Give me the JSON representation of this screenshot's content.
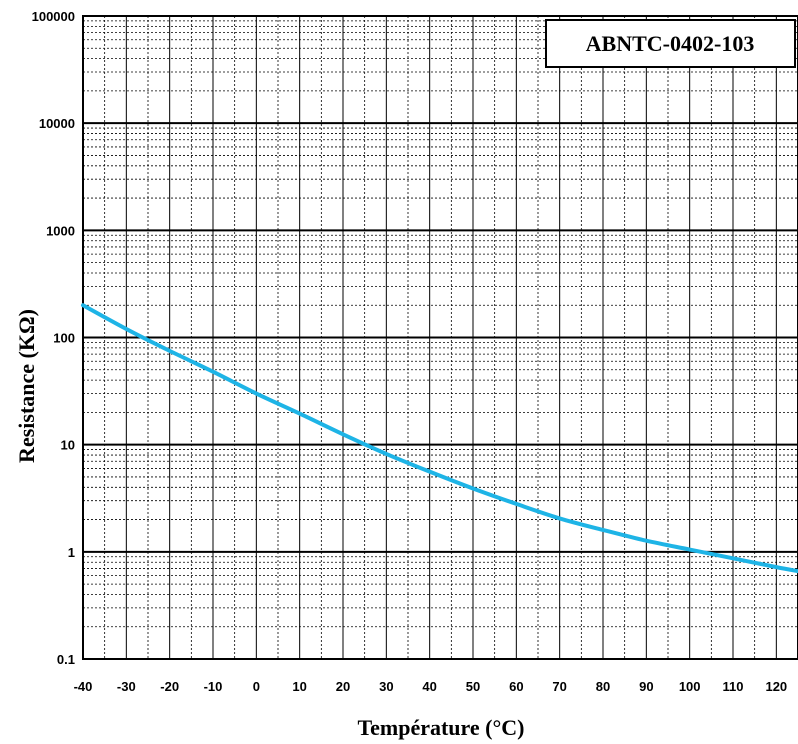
{
  "chart_data": {
    "type": "line",
    "xlabel": "Température (°C)",
    "ylabel": "Resistance (KΩ)",
    "yscale": "log",
    "xlim": [
      -40,
      125
    ],
    "ylim": [
      0.1,
      100000
    ],
    "x_ticks": [
      -40,
      -30,
      -20,
      -10,
      0,
      10,
      20,
      30,
      40,
      50,
      60,
      70,
      80,
      90,
      100,
      110,
      120
    ],
    "y_ticks": [
      0.1,
      1,
      10,
      100,
      1000,
      10000,
      100000
    ],
    "y_tick_labels": [
      "0.1",
      "1",
      "10",
      "100",
      "1000",
      "10000",
      "100000"
    ],
    "grid": true,
    "legend_position": "top-right",
    "series": [
      {
        "name": "ABNTC-0402-103",
        "color": "#1eb4e6",
        "x": [
          -40,
          -30,
          -20,
          -10,
          0,
          10,
          20,
          30,
          40,
          50,
          60,
          70,
          80,
          90,
          100,
          110,
          120,
          125
        ],
        "y": [
          200,
          120,
          75,
          48,
          30,
          19.5,
          12.5,
          8.2,
          5.6,
          3.9,
          2.8,
          2.05,
          1.6,
          1.27,
          1.05,
          0.87,
          0.72,
          0.66
        ]
      }
    ]
  }
}
